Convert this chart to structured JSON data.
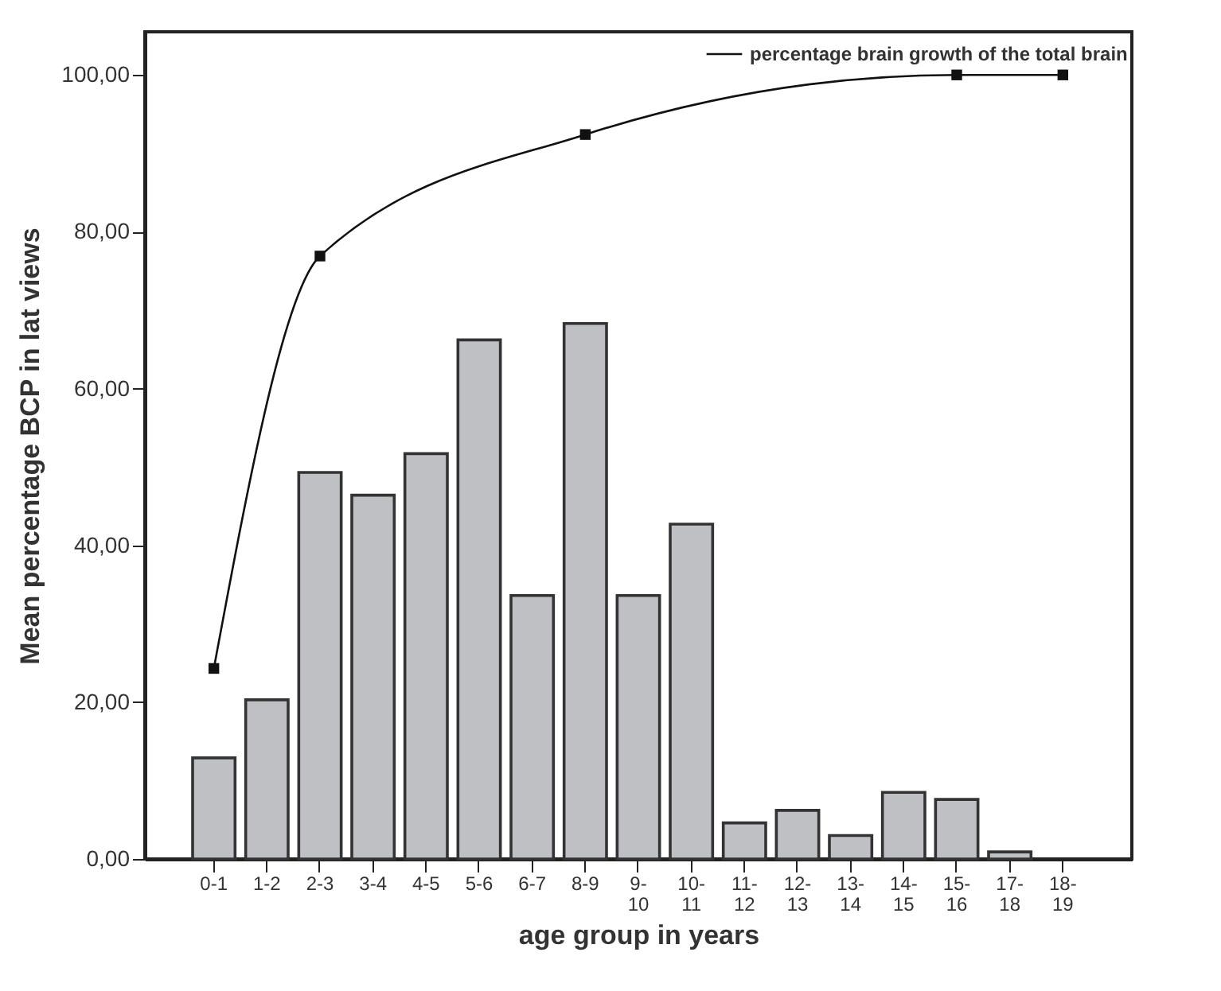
{
  "chart_data": {
    "type": "bar",
    "xlabel": "age group in years",
    "ylabel": "Mean percentage BCP in lat views",
    "categories": [
      "0-1",
      "1-2",
      "2-3",
      "3-4",
      "4-5",
      "5-6",
      "6-7",
      "8-9",
      "9-10",
      "10-11",
      "11-12",
      "12-13",
      "13-14",
      "14-15",
      "15-16",
      "17-18",
      "18-19"
    ],
    "series": [
      {
        "color": "#bfc0c4",
        "values": [
          12.9,
          20.3,
          49.3,
          46.4,
          51.7,
          66.2,
          33.6,
          68.3,
          33.6,
          42.7,
          4.6,
          6.2,
          3.0,
          8.5,
          7.6,
          0.9,
          null
        ]
      },
      {
        "type": "line",
        "name": "percentage brain growth of the total brain",
        "color": "#111111",
        "x": [
          "0-1",
          "2-3",
          "8-9",
          "15-16",
          "18-19"
        ],
        "values": [
          24.3,
          76.9,
          92.4,
          100,
          100
        ],
        "marker": "square"
      }
    ],
    "ylim": [
      0,
      105.5
    ],
    "yticks": [
      {
        "value": 0,
        "label": "0,00"
      },
      {
        "value": 20,
        "label": "20,00"
      },
      {
        "value": 40,
        "label": "40,00"
      },
      {
        "value": 60,
        "label": "60,00"
      },
      {
        "value": 80,
        "label": "80,00"
      },
      {
        "value": 100,
        "label": "100,00"
      }
    ],
    "grid": false,
    "legend": "top right"
  }
}
